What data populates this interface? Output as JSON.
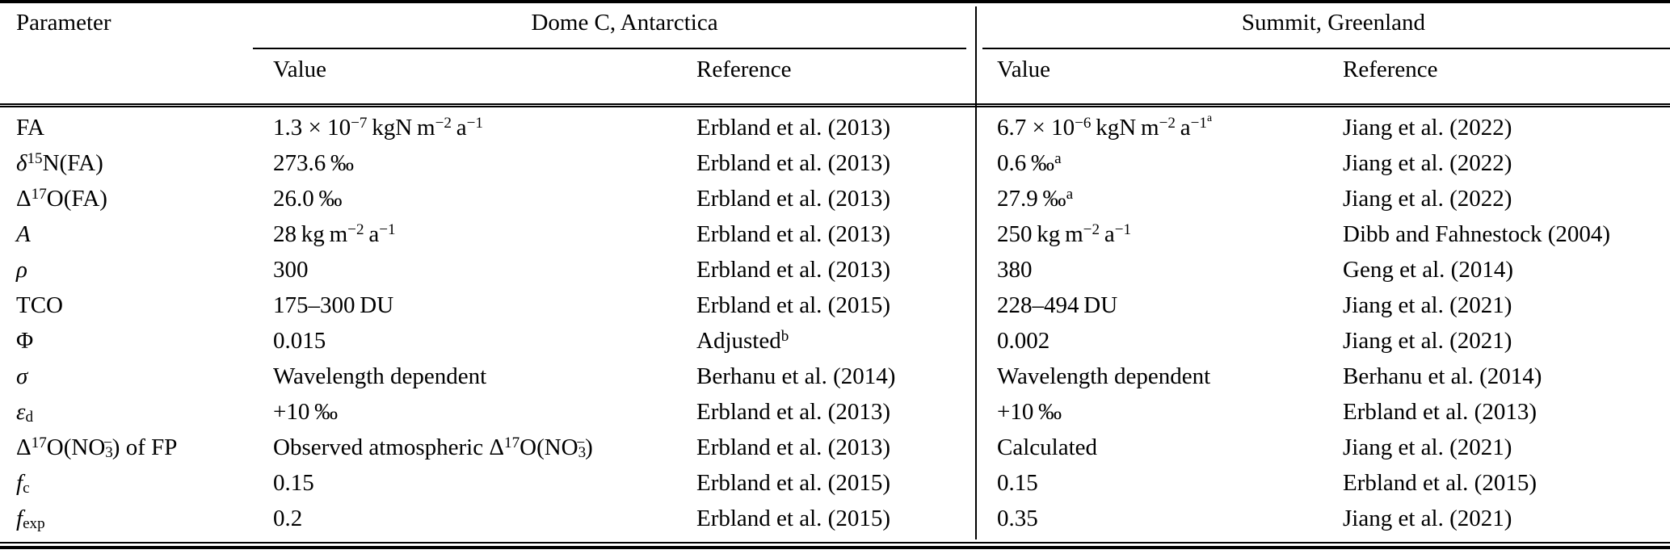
{
  "table": {
    "header": {
      "parameter_label": "Parameter",
      "groups": [
        {
          "title": "Dome C, Antarctica",
          "value_label": "Value",
          "reference_label": "Reference"
        },
        {
          "title": "Summit, Greenland",
          "value_label": "Value",
          "reference_label": "Reference"
        }
      ]
    },
    "rows": [
      {
        "param": "FA",
        "dome_c": {
          "value": "1.3 × 10<sup>−7</sup> kgN m<sup>−2</sup> a<sup>−1</sup>",
          "reference": "Erbland et al. (2013)"
        },
        "summit": {
          "value": "6.7 × 10<sup>−6</sup> kgN m<sup>−2</sup> a<sup>−1<sup>a</sup></sup>",
          "reference": "Jiang et al. (2022)"
        }
      },
      {
        "param": "<i>δ</i><sup>15</sup>N(FA)",
        "dome_c": {
          "value": "273.6 ‰",
          "reference": "Erbland et al. (2013)"
        },
        "summit": {
          "value": "0.6 ‰<sup>a</sup>",
          "reference": "Jiang et al. (2022)"
        }
      },
      {
        "param": "Δ<sup>17</sup>O(FA)",
        "dome_c": {
          "value": "26.0 ‰",
          "reference": "Erbland et al. (2013)"
        },
        "summit": {
          "value": "27.9 ‰<sup>a</sup>",
          "reference": "Jiang et al. (2022)"
        }
      },
      {
        "param": "<i>A</i>",
        "dome_c": {
          "value": "28 kg m<sup>−2</sup> a<sup>−1</sup>",
          "reference": "Erbland et al. (2013)"
        },
        "summit": {
          "value": "250 kg m<sup>−2</sup> a<sup>−1</sup>",
          "reference": "Dibb and Fahnestock (2004)"
        }
      },
      {
        "param": "<i>ρ</i>",
        "dome_c": {
          "value": "300",
          "reference": "Erbland et al. (2013)"
        },
        "summit": {
          "value": "380",
          "reference": "Geng et al. (2014)"
        }
      },
      {
        "param": "TCO",
        "dome_c": {
          "value": "175–300 DU",
          "reference": "Erbland et al. (2015)"
        },
        "summit": {
          "value": "228–494 DU",
          "reference": "Jiang et al. (2021)"
        }
      },
      {
        "param": "Φ",
        "dome_c": {
          "value": "0.015",
          "reference": "Adjusted<sup>b</sup>"
        },
        "summit": {
          "value": "0.002",
          "reference": "Jiang et al. (2021)"
        }
      },
      {
        "param": "<i>σ</i>",
        "dome_c": {
          "value": "Wavelength dependent",
          "reference": "Berhanu et al. (2014)"
        },
        "summit": {
          "value": "Wavelength dependent",
          "reference": "Berhanu et al. (2014)"
        }
      },
      {
        "param": "<i>ε</i><sub>d</sub>",
        "dome_c": {
          "value": "+10 ‰",
          "reference": "Erbland et al. (2013)"
        },
        "summit": {
          "value": "+10 ‰",
          "reference": "Erbland et al. (2013)"
        }
      },
      {
        "param": "Δ<sup>17</sup>O(NO<sub>3</sub><sup>−</sup>) of FP",
        "dome_c": {
          "value": "Observed atmospheric Δ<sup>17</sup>O(NO<sub>3</sub><sup>−</sup>)",
          "reference": "Erbland et al. (2013)"
        },
        "summit": {
          "value": "Calculated",
          "reference": "Jiang et al. (2021)"
        }
      },
      {
        "param": "<i>f</i><sub>c</sub>",
        "dome_c": {
          "value": "0.15",
          "reference": "Erbland et al. (2015)"
        },
        "summit": {
          "value": "0.15",
          "reference": "Erbland et al. (2015)"
        }
      },
      {
        "param": "<i>f</i><sub>exp</sub>",
        "dome_c": {
          "value": "0.2",
          "reference": "Erbland et al. (2015)"
        },
        "summit": {
          "value": "0.35",
          "reference": "Jiang et al. (2021)"
        }
      }
    ]
  }
}
